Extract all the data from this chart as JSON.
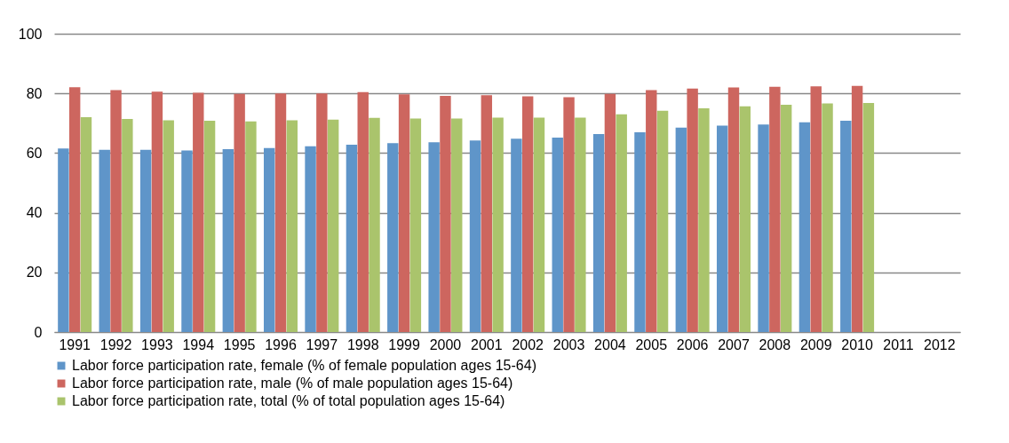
{
  "chart_data": {
    "type": "bar",
    "categories": [
      "1991",
      "1992",
      "1993",
      "1994",
      "1995",
      "1996",
      "1997",
      "1998",
      "1999",
      "2000",
      "2001",
      "2002",
      "2003",
      "2004",
      "2005",
      "2006",
      "2007",
      "2008",
      "2009",
      "2010",
      "2011",
      "2012"
    ],
    "series": [
      {
        "name": "Labor force participation rate, female (% of female population ages 15-64)",
        "color": "#5f95c9",
        "values": [
          61.5,
          61.1,
          61.1,
          60.9,
          61.3,
          61.7,
          62.3,
          62.8,
          63.3,
          63.6,
          64.2,
          64.8,
          65.2,
          66.4,
          67.0,
          68.5,
          69.2,
          69.6,
          70.3,
          70.8,
          null,
          null
        ]
      },
      {
        "name": "Labor force participation rate, male (% of male population ages 15-64)",
        "color": "#cd665f",
        "values": [
          82.1,
          81.1,
          80.6,
          80.2,
          79.8,
          80.0,
          80.0,
          80.4,
          79.7,
          79.2,
          79.4,
          79.0,
          78.7,
          79.8,
          81.1,
          81.6,
          82.0,
          82.2,
          82.4,
          82.5,
          null,
          null
        ]
      },
      {
        "name": "Labor force participation rate, total (% of total population ages 15-64)",
        "color": "#aac46c",
        "values": [
          72.0,
          71.4,
          71.0,
          70.8,
          70.6,
          71.0,
          71.2,
          71.8,
          71.6,
          71.6,
          71.9,
          71.9,
          71.9,
          73.0,
          74.2,
          75.0,
          75.7,
          76.2,
          76.6,
          76.8,
          null,
          null
        ]
      }
    ],
    "ylim": [
      0,
      100
    ],
    "yticks": [
      0,
      20,
      40,
      60,
      80,
      100
    ],
    "grid": "y",
    "legend": "bottom"
  }
}
